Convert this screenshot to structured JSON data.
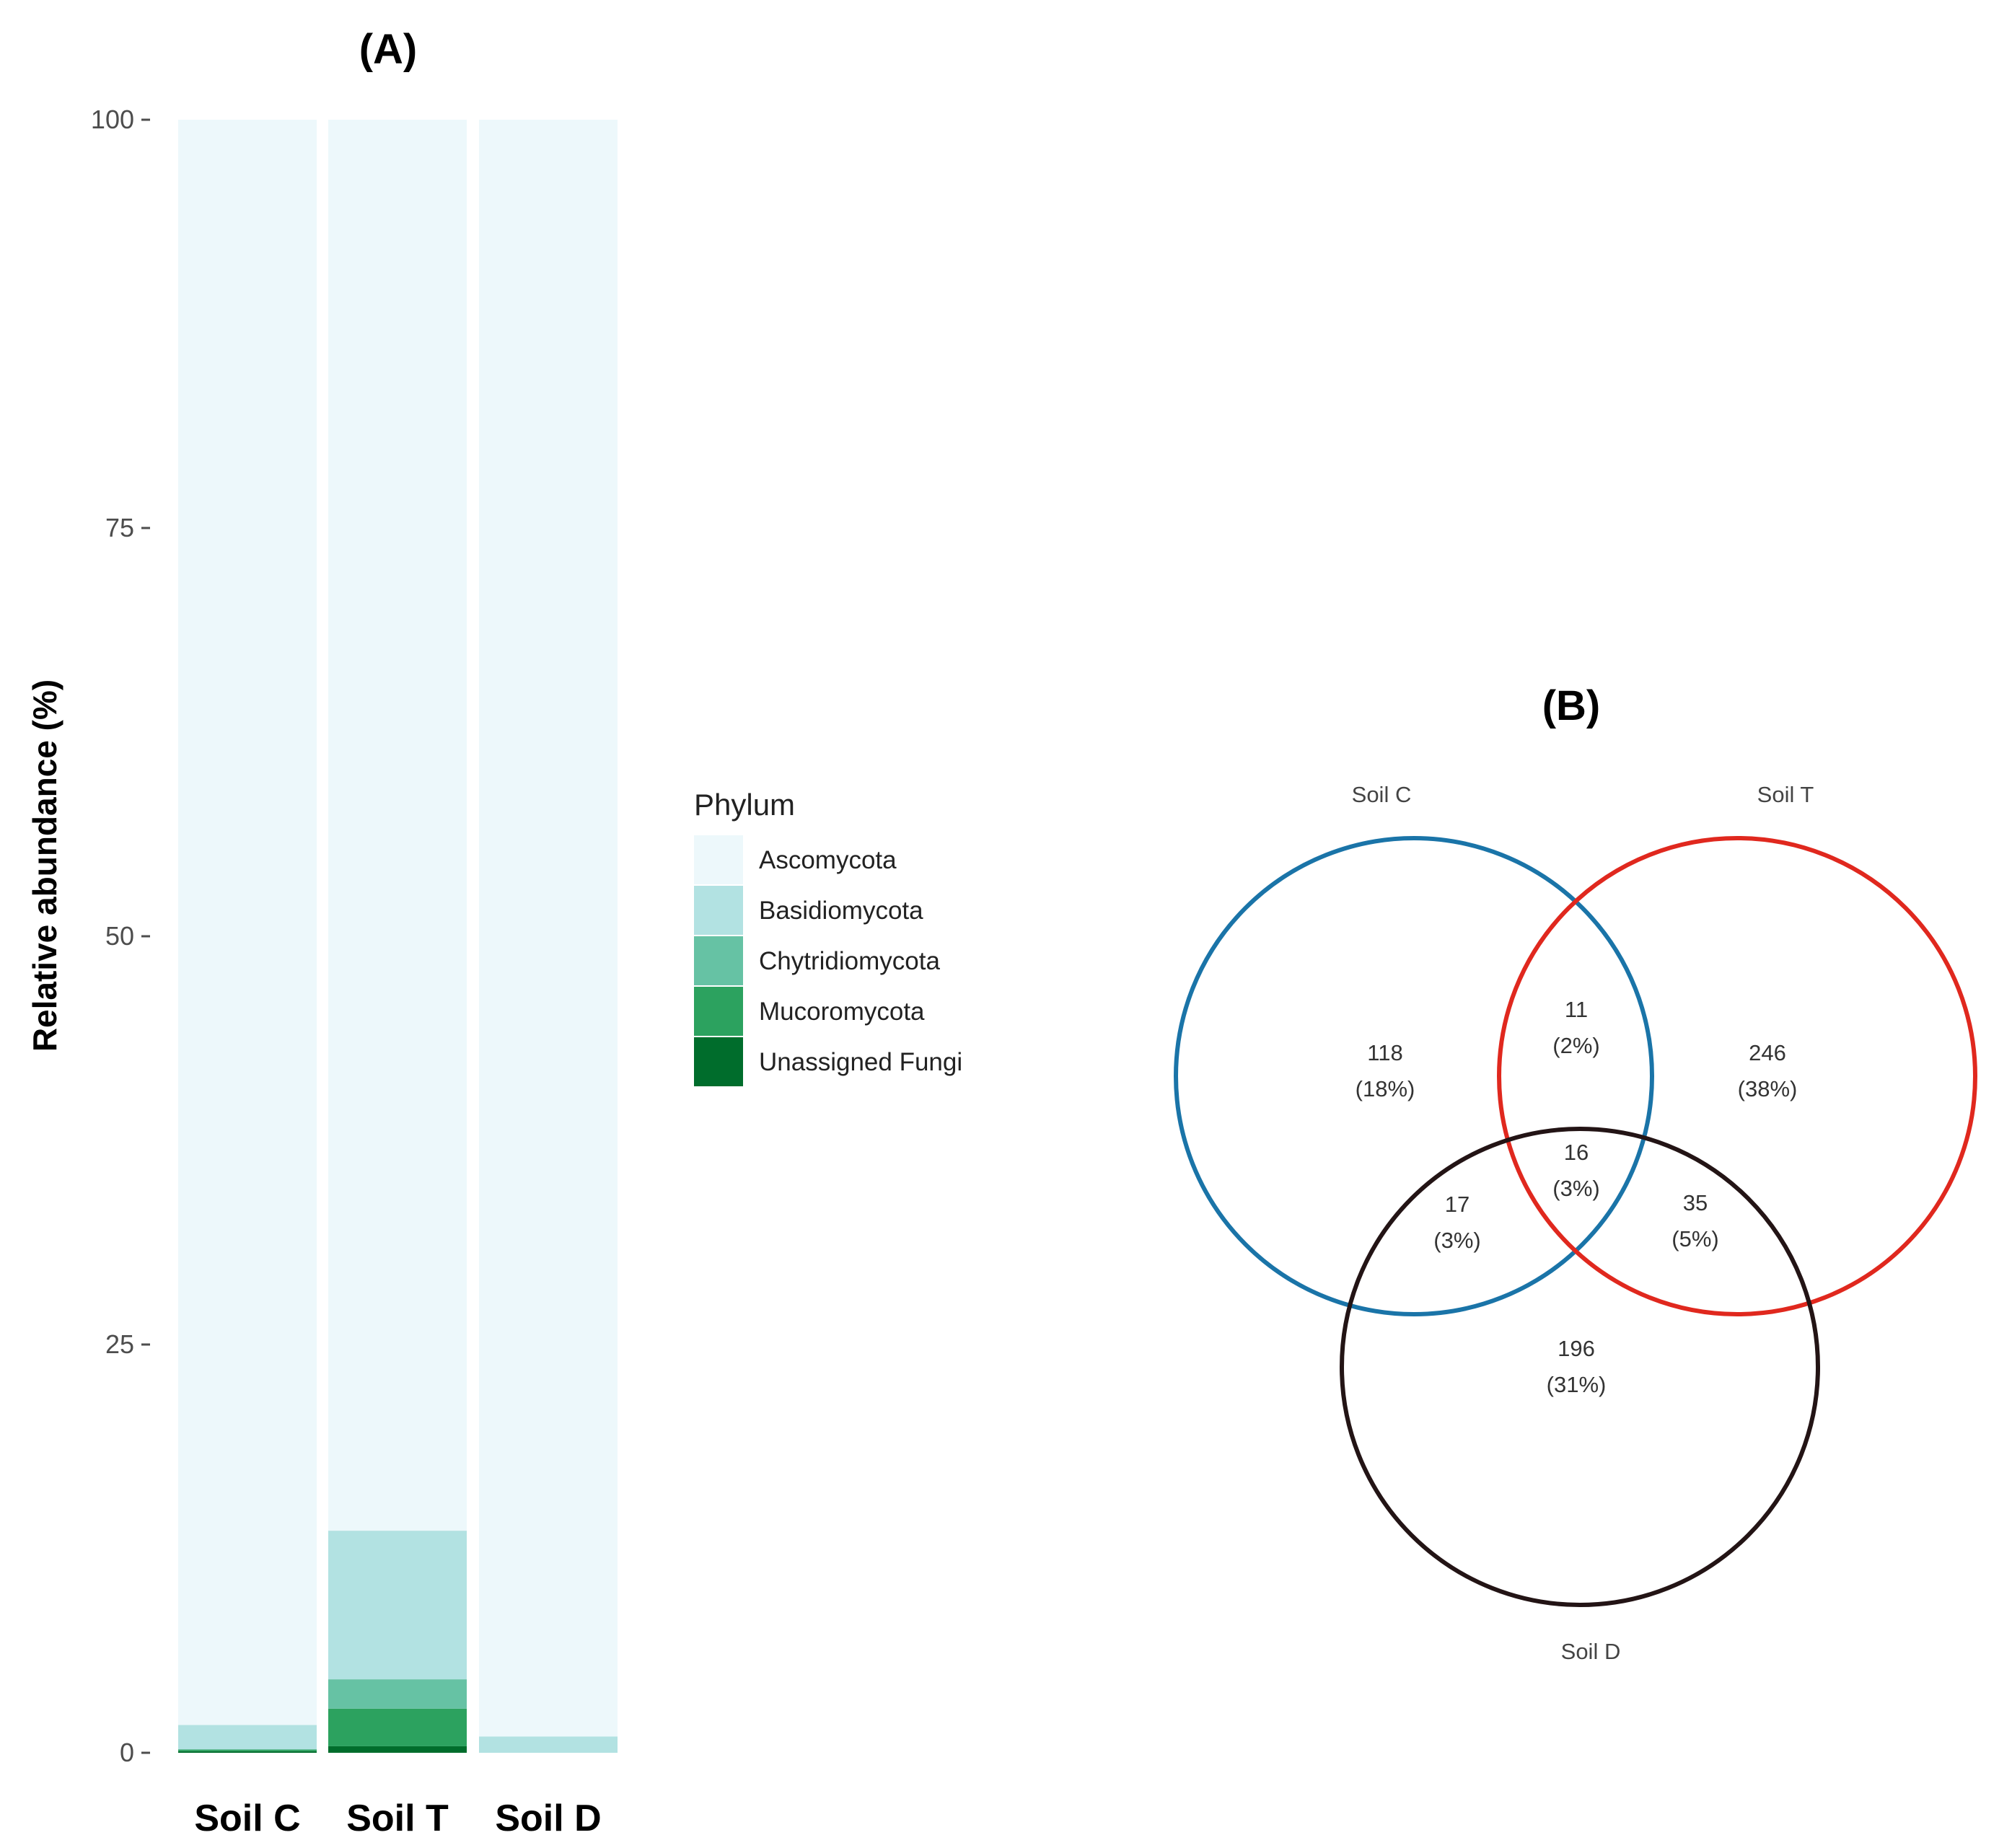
{
  "chart_data": [
    {
      "type": "bar",
      "stacked": true,
      "title": "(A)",
      "xlabel": "",
      "ylabel": "Relative abundance (%)",
      "ylim": [
        0,
        100
      ],
      "yticks": [
        0,
        25,
        50,
        75,
        100
      ],
      "categories": [
        "Soil C",
        "Soil T",
        "Soil D"
      ],
      "legend": {
        "title": "Phylum",
        "position": "right"
      },
      "series": [
        {
          "name": "Unassigned Fungi",
          "color": "#006d2c",
          "values": [
            0.1,
            0.4,
            0.0
          ]
        },
        {
          "name": "Mucoromycota",
          "color": "#2ca25f",
          "values": [
            0.1,
            2.3,
            0.0
          ]
        },
        {
          "name": "Chytridiomycota",
          "color": "#66c2a4",
          "values": [
            0.0,
            1.8,
            0.0
          ]
        },
        {
          "name": "Basidiomycota",
          "color": "#b2e2e2",
          "values": [
            1.5,
            9.1,
            1.0
          ]
        },
        {
          "name": "Ascomycota",
          "color": "#edf8fb",
          "values": [
            98.3,
            86.4,
            99.0
          ]
        }
      ]
    },
    {
      "type": "venn",
      "title": "(B)",
      "sets": [
        {
          "name": "Soil C",
          "color": "#1a74a8"
        },
        {
          "name": "Soil T",
          "color": "#e0281e"
        },
        {
          "name": "Soil D",
          "color": "#231415"
        }
      ],
      "regions": [
        {
          "sets": [
            "Soil C"
          ],
          "count": "118",
          "percent": "(18%)"
        },
        {
          "sets": [
            "Soil T"
          ],
          "count": "246",
          "percent": "(38%)"
        },
        {
          "sets": [
            "Soil D"
          ],
          "count": "196",
          "percent": "(31%)"
        },
        {
          "sets": [
            "Soil C",
            "Soil T"
          ],
          "count": "11",
          "percent": "(2%)"
        },
        {
          "sets": [
            "Soil C",
            "Soil D"
          ],
          "count": "17",
          "percent": "(3%)"
        },
        {
          "sets": [
            "Soil T",
            "Soil D"
          ],
          "count": "35",
          "percent": "(5%)"
        },
        {
          "sets": [
            "Soil C",
            "Soil T",
            "Soil D"
          ],
          "count": "16",
          "percent": "(3%)"
        }
      ]
    }
  ]
}
